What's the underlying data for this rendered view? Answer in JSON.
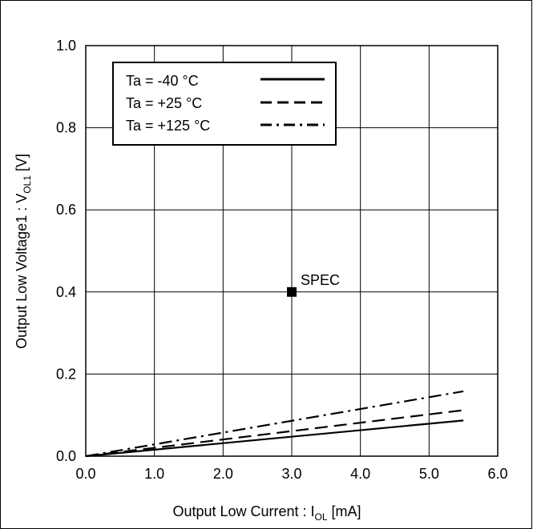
{
  "chart_data": {
    "type": "line",
    "title": "",
    "xlabel": {
      "main": "Output Low Current : I",
      "sub": "OL",
      "unit": " [mA]"
    },
    "ylabel": {
      "main": "Output Low Voltage1 : V",
      "sub": "OL1",
      "unit": " [V]"
    },
    "xlim": [
      0,
      6
    ],
    "ylim": [
      0,
      1
    ],
    "xticks": [
      0,
      1,
      2,
      3,
      4,
      5,
      6
    ],
    "yticks": [
      0,
      0.2,
      0.4,
      0.6,
      0.8,
      1.0
    ],
    "xtick_labels": [
      "0.0",
      "1.0",
      "2.0",
      "3.0",
      "4.0",
      "5.0",
      "6.0"
    ],
    "ytick_labels": [
      "0.0",
      "0.2",
      "0.4",
      "0.6",
      "0.8",
      "1.0"
    ],
    "grid": true,
    "legend_position": "top-left",
    "series": [
      {
        "name": "Ta = -40 °C",
        "style": "solid",
        "color": "#000000",
        "x": [
          0,
          5.5
        ],
        "y": [
          0,
          0.087
        ]
      },
      {
        "name": "Ta = +25 °C",
        "style": "dashed",
        "color": "#000000",
        "x": [
          0,
          5.5
        ],
        "y": [
          0,
          0.112
        ]
      },
      {
        "name": "Ta = +125 °C",
        "style": "dashdot",
        "color": "#000000",
        "x": [
          0,
          5.5
        ],
        "y": [
          0,
          0.158
        ]
      }
    ],
    "annotations": [
      {
        "label": "SPEC",
        "x": 3.0,
        "y": 0.4,
        "marker": "square"
      }
    ]
  }
}
